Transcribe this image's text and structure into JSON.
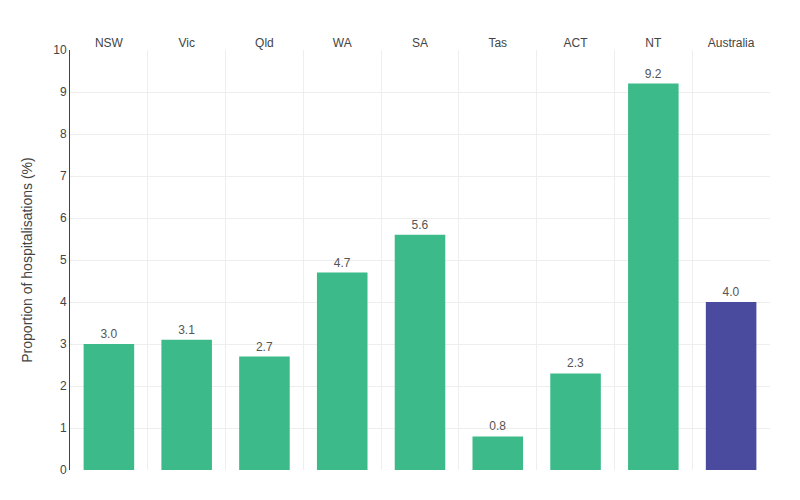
{
  "chart_data": {
    "type": "bar",
    "categories": [
      "NSW",
      "Vic",
      "Qld",
      "WA",
      "SA",
      "Tas",
      "ACT",
      "NT",
      "Australia"
    ],
    "values": [
      3.0,
      3.1,
      2.7,
      4.7,
      5.6,
      0.8,
      2.3,
      9.2,
      4.0
    ],
    "value_labels": [
      "3.0",
      "3.1",
      "2.7",
      "4.7",
      "5.6",
      "0.8",
      "2.3",
      "9.2",
      "4.0"
    ],
    "colors": [
      "#3dba8a",
      "#3dba8a",
      "#3dba8a",
      "#3dba8a",
      "#3dba8a",
      "#3dba8a",
      "#3dba8a",
      "#3dba8a",
      "#4a4a9e"
    ],
    "ylabel": "Proportion of hospitalisations (%)",
    "ylim": [
      0,
      10
    ],
    "yticks": [
      0,
      1,
      2,
      3,
      4,
      5,
      6,
      7,
      8,
      9,
      10
    ],
    "grid": true,
    "data_labels": true
  }
}
